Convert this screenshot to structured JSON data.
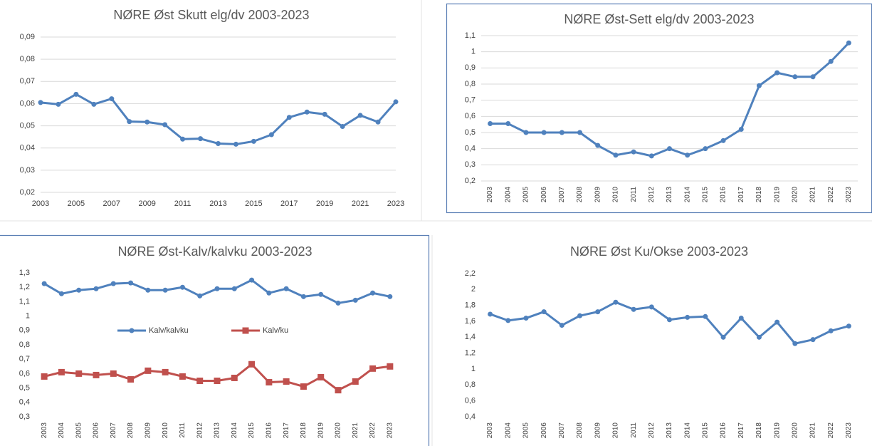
{
  "chart_data": [
    {
      "type": "line",
      "title": "NØRE Øst Skutt elg/dv 2003-2023",
      "x": [
        2003,
        2004,
        2005,
        2006,
        2007,
        2008,
        2009,
        2010,
        2011,
        2012,
        2013,
        2014,
        2015,
        2016,
        2017,
        2018,
        2019,
        2020,
        2021,
        2022,
        2023
      ],
      "xlim": [
        2003,
        2023
      ],
      "xticks": [
        2003,
        2005,
        2007,
        2009,
        2011,
        2013,
        2015,
        2017,
        2019,
        2021,
        2023
      ],
      "values": [
        0.0605,
        0.0597,
        0.0642,
        0.0597,
        0.0622,
        0.0519,
        0.0517,
        0.0505,
        0.044,
        0.0442,
        0.042,
        0.0417,
        0.043,
        0.046,
        0.0538,
        0.0562,
        0.0552,
        0.0497,
        0.0547,
        0.0517,
        0.0608
      ],
      "color": "#4f81bd",
      "ylim": [
        0.02,
        0.09
      ],
      "yticks": [
        {
          "value": 0.02,
          "label": "0,02"
        },
        {
          "value": 0.03,
          "label": "0,03"
        },
        {
          "value": 0.04,
          "label": "0,04"
        },
        {
          "value": 0.05,
          "label": "0,05"
        },
        {
          "value": 0.06,
          "label": "0,06"
        },
        {
          "value": 0.07,
          "label": "0,07"
        },
        {
          "value": 0.08,
          "label": "0,08"
        },
        {
          "value": 0.09,
          "label": "0,09"
        }
      ],
      "grid": true
    },
    {
      "type": "line",
      "title": "NØRE Øst-Sett elg/dv 2003-2023",
      "categories": [
        "2003",
        "2004",
        "2005",
        "2006",
        "2007",
        "2008",
        "2009",
        "2010",
        "2011",
        "2012",
        "2013",
        "2014",
        "2015",
        "2016",
        "2017",
        "2018",
        "2019",
        "2020",
        "2021",
        "2022",
        "2023"
      ],
      "values": [
        0.555,
        0.555,
        0.5,
        0.5,
        0.5,
        0.5,
        0.42,
        0.36,
        0.38,
        0.355,
        0.4,
        0.36,
        0.4,
        0.45,
        0.52,
        0.79,
        0.87,
        0.845,
        0.845,
        0.94,
        1.055
      ],
      "color": "#4f81bd",
      "ylim": [
        0.2,
        1.1
      ],
      "yticks": [
        {
          "value": 0.2,
          "label": "0,2"
        },
        {
          "value": 0.3,
          "label": "0,3"
        },
        {
          "value": 0.4,
          "label": "0,4"
        },
        {
          "value": 0.5,
          "label": "0,5"
        },
        {
          "value": 0.6,
          "label": "0,6"
        },
        {
          "value": 0.7,
          "label": "0,7"
        },
        {
          "value": 0.8,
          "label": "0,8"
        },
        {
          "value": 0.9,
          "label": "0,9"
        },
        1,
        {
          "value": 1.1,
          "label": "1,1"
        }
      ],
      "grid": true
    },
    {
      "type": "line",
      "title": "NØRE Øst-Kalv/kalvku 2003-2023",
      "categories": [
        "2003",
        "2004",
        "2005",
        "2006",
        "2007",
        "2008",
        "2009",
        "2010",
        "2011",
        "2012",
        "2013",
        "2014",
        "2015",
        "2016",
        "2017",
        "2018",
        "2019",
        "2020",
        "2021",
        "2022",
        "2023"
      ],
      "series": [
        {
          "name": "Kalv/kalvku",
          "color": "#4f81bd",
          "marker": "circle",
          "values": [
            1.225,
            1.155,
            1.18,
            1.19,
            1.225,
            1.23,
            1.18,
            1.18,
            1.2,
            1.14,
            1.19,
            1.19,
            1.25,
            1.16,
            1.19,
            1.135,
            1.15,
            1.09,
            1.11,
            1.16,
            1.135
          ]
        },
        {
          "name": "Kalv/ku",
          "color": "#c0504d",
          "marker": "square",
          "values": [
            0.58,
            0.61,
            0.6,
            0.59,
            0.6,
            0.56,
            0.62,
            0.61,
            0.58,
            0.55,
            0.55,
            0.57,
            0.665,
            0.54,
            0.545,
            0.51,
            0.575,
            0.485,
            0.545,
            0.635,
            0.65
          ]
        }
      ],
      "legend": "center",
      "ylim": [
        0.3,
        1.3
      ],
      "yticks": [
        {
          "value": 0.3,
          "label": "0,3"
        },
        {
          "value": 0.4,
          "label": "0,4"
        },
        {
          "value": 0.5,
          "label": "0,5"
        },
        {
          "value": 0.6,
          "label": "0,6"
        },
        {
          "value": 0.7,
          "label": "0,7"
        },
        {
          "value": 0.8,
          "label": "0,8"
        },
        {
          "value": 0.9,
          "label": "0,9"
        },
        1,
        {
          "value": 1.1,
          "label": "1,1"
        },
        {
          "value": 1.2,
          "label": "1,2"
        },
        {
          "value": 1.3,
          "label": "1,3"
        }
      ],
      "grid": false
    },
    {
      "type": "line",
      "title": "NØRE Øst Ku/Okse 2003-2023",
      "categories": [
        "2003",
        "2004",
        "2005",
        "2006",
        "2007",
        "2008",
        "2009",
        "2010",
        "2011",
        "2012",
        "2013",
        "2014",
        "2015",
        "2016",
        "2017",
        "2018",
        "2019",
        "2020",
        "2021",
        "2022",
        "2023"
      ],
      "values": [
        1.69,
        1.61,
        1.64,
        1.72,
        1.55,
        1.67,
        1.72,
        1.84,
        1.75,
        1.78,
        1.62,
        1.65,
        1.66,
        1.4,
        1.64,
        1.4,
        1.59,
        1.32,
        1.37,
        1.48,
        1.54
      ],
      "color": "#4f81bd",
      "ylim": [
        0.4,
        2.2
      ],
      "yticks": [
        {
          "value": 0.4,
          "label": "0,4"
        },
        {
          "value": 0.6,
          "label": "0,6"
        },
        {
          "value": 0.8,
          "label": "0,8"
        },
        1,
        {
          "value": 1.2,
          "label": "1,2"
        },
        {
          "value": 1.4,
          "label": "1,4"
        },
        {
          "value": 1.6,
          "label": "1,6"
        },
        {
          "value": 1.8,
          "label": "1,8"
        },
        2,
        {
          "value": 2.2,
          "label": "2,2"
        }
      ],
      "grid": false
    }
  ]
}
